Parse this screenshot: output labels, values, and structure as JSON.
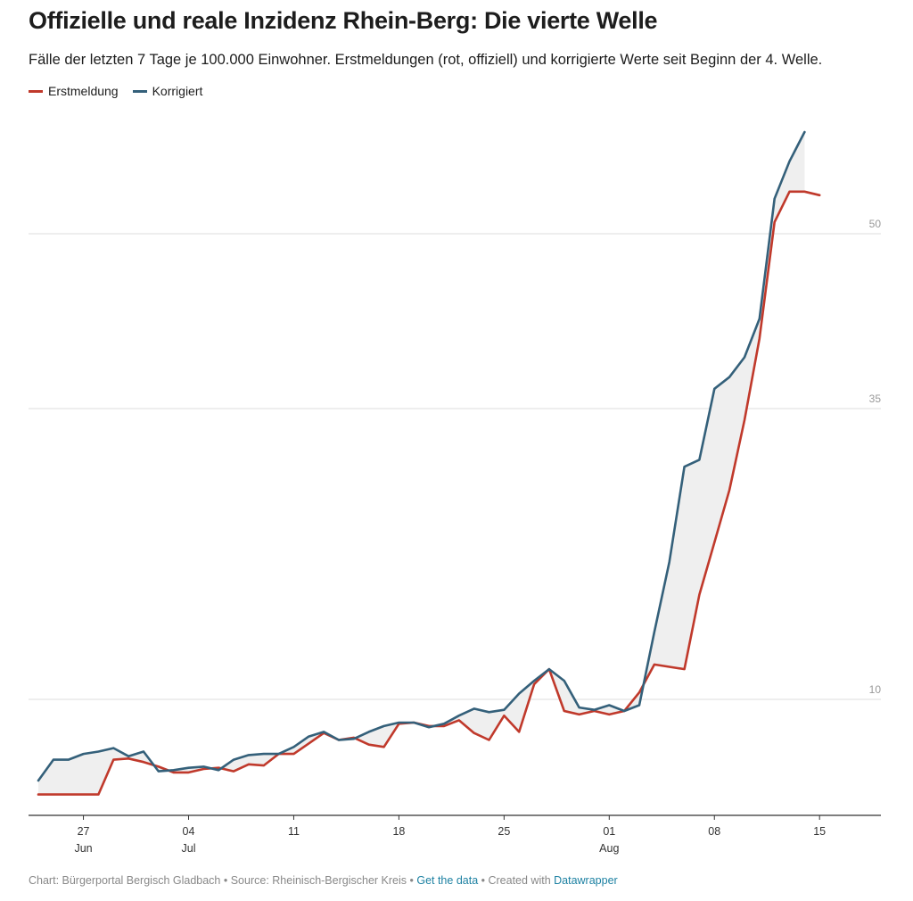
{
  "header": {
    "title": "Offizielle und reale Inzidenz Rhein-Berg: Die vierte Welle",
    "subtitle": "Fälle der letzten 7 Tage je 100.000 Einwohner. Erstmeldungen (rot, offiziell) und korrigierte Werte seit Beginn der 4. Welle."
  },
  "footer": {
    "prefix": "Chart: Bürgerportal Bergisch Gladbach • Source: Rheinisch-Bergischer Kreis • ",
    "get_data": "Get the data",
    "middle": " • Created with ",
    "datawrapper": "Datawrapper"
  },
  "colors": {
    "erstmeldung": "#c0392b",
    "korrigiert": "#34607a",
    "band": "#efefef",
    "grid": "#dddddd"
  },
  "chart_data": {
    "type": "line",
    "title": "Offizielle und reale Inzidenz Rhein-Berg: Die vierte Welle",
    "legend_position": "top-left",
    "grid": true,
    "y_gridlines": [
      10,
      35,
      50
    ],
    "ylim": [
      0,
      60
    ],
    "x_start_date": "2021-06-24",
    "x_ticks": [
      {
        "day": "27",
        "month": "Jun",
        "index": 3
      },
      {
        "day": "04",
        "month": "Jul",
        "index": 10
      },
      {
        "day": "11",
        "month": "",
        "index": 17
      },
      {
        "day": "18",
        "month": "",
        "index": 24
      },
      {
        "day": "25",
        "month": "",
        "index": 31
      },
      {
        "day": "01",
        "month": "Aug",
        "index": 38
      },
      {
        "day": "08",
        "month": "",
        "index": 45
      },
      {
        "day": "15",
        "month": "",
        "index": 52
      }
    ],
    "series": [
      {
        "name": "Erstmeldung",
        "color": "#c0392b",
        "values": [
          1.8,
          1.8,
          1.8,
          1.8,
          1.8,
          4.8,
          4.9,
          4.6,
          4.2,
          3.7,
          3.7,
          4.0,
          4.1,
          3.8,
          4.4,
          4.3,
          5.3,
          5.3,
          6.2,
          7.1,
          6.5,
          6.7,
          6.1,
          5.9,
          7.9,
          8.0,
          7.7,
          7.7,
          8.2,
          7.1,
          6.5,
          8.6,
          7.2,
          11.3,
          12.6,
          9.0,
          8.7,
          9.0,
          8.7,
          9.0,
          10.6,
          13.0,
          12.8,
          12.6,
          19.0,
          23.5,
          28.0,
          34.0,
          41.0,
          51.0,
          53.6,
          53.6,
          53.3
        ],
        "label_positions": []
      },
      {
        "name": "Korrigiert",
        "color": "#34607a",
        "values": [
          3.0,
          4.8,
          4.8,
          5.3,
          5.5,
          5.8,
          5.1,
          5.5,
          3.8,
          3.9,
          4.1,
          4.2,
          3.9,
          4.8,
          5.2,
          5.3,
          5.3,
          5.9,
          6.8,
          7.2,
          6.5,
          6.6,
          7.2,
          7.7,
          8.0,
          8.0,
          7.6,
          7.9,
          8.6,
          9.2,
          8.9,
          9.1,
          10.5,
          11.6,
          12.6,
          11.6,
          9.3,
          9.1,
          9.5,
          9.0,
          9.5,
          15.8,
          21.8,
          30.0,
          30.6,
          36.7,
          37.7,
          39.4,
          42.7,
          53.0,
          56.2,
          58.7
        ]
      }
    ]
  }
}
